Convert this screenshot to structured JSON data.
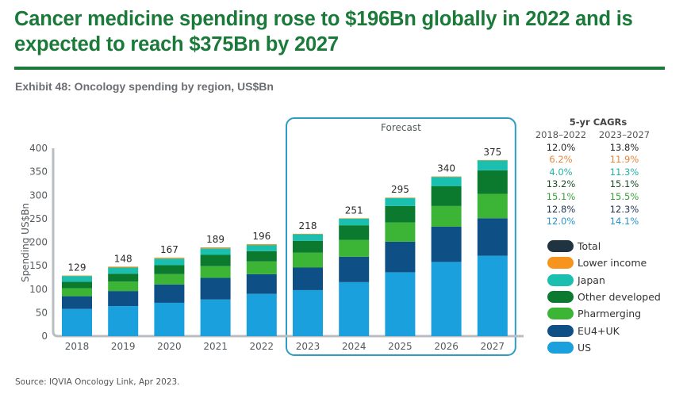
{
  "headline": "Cancer medicine spending rose to $196Bn globally in 2022 and is expected to reach $375Bn by 2027",
  "exhibit_title": "Exhibit 48: Oncology spending by region, US$Bn",
  "source": "Source: IQVIA Oncology Link, Apr 2023.",
  "colors": {
    "headline": "#1B7A3A",
    "US": "#1AA0DC",
    "EU4+UK": "#0E4F86",
    "Pharmerging": "#3CB536",
    "Other developed": "#0B7A2E",
    "Japan": "#1ABFB0",
    "Lower income": "#F7941D",
    "Total": "#1F3340",
    "forecast_box": "#2E9BC4"
  },
  "cagr_table": {
    "title": "5-yr CAGRs",
    "columns": [
      "2018–2022",
      "2023–2027"
    ],
    "rows": [
      {
        "series": "Total",
        "values": [
          "12.0%",
          "13.8%"
        ],
        "color": "#222222"
      },
      {
        "series": "Lower income",
        "values": [
          "6.2%",
          "11.9%"
        ],
        "color": "#E8843A"
      },
      {
        "series": "Japan",
        "values": [
          "4.0%",
          "11.3%"
        ],
        "color": "#22B3A8"
      },
      {
        "series": "Other developed",
        "values": [
          "13.2%",
          "15.1%"
        ],
        "color": "#1E4D2B"
      },
      {
        "series": "Pharmerging",
        "values": [
          "15.1%",
          "15.5%"
        ],
        "color": "#3A9E3A"
      },
      {
        "series": "EU4+UK",
        "values": [
          "12.8%",
          "12.3%"
        ],
        "color": "#1E3350"
      },
      {
        "series": "US",
        "values": [
          "12.0%",
          "14.1%"
        ],
        "color": "#2A95C8"
      }
    ]
  },
  "legend": [
    {
      "label": "Total",
      "color": "#1F3340"
    },
    {
      "label": "Lower income",
      "color": "#F7941D"
    },
    {
      "label": "Japan",
      "color": "#1ABFB0"
    },
    {
      "label": "Other developed",
      "color": "#0B7A2E"
    },
    {
      "label": "Pharmerging",
      "color": "#3CB536"
    },
    {
      "label": "EU4+UK",
      "color": "#0E4F86"
    },
    {
      "label": "US",
      "color": "#1AA0DC"
    }
  ],
  "chart_data": {
    "type": "bar",
    "stacked": true,
    "title": "Exhibit 48: Oncology spending by region, US$Bn",
    "xlabel": "",
    "ylabel": "Spending US$Bn",
    "ylim": [
      0,
      400
    ],
    "yticks": [
      0,
      50,
      100,
      150,
      200,
      250,
      300,
      350,
      400
    ],
    "grid": false,
    "legend_position": "right",
    "categories": [
      "2018",
      "2019",
      "2020",
      "2021",
      "2022",
      "2023",
      "2024",
      "2025",
      "2026",
      "2027"
    ],
    "forecast_categories": [
      "2023",
      "2024",
      "2025",
      "2026",
      "2027"
    ],
    "forecast_label": "Forecast",
    "totals": [
      129,
      148,
      167,
      189,
      196,
      218,
      251,
      295,
      340,
      375
    ],
    "series": [
      {
        "name": "US",
        "values": [
          58,
          64,
          71,
          78,
          90,
          98,
          115,
          136,
          158,
          171
        ]
      },
      {
        "name": "EU4+UK",
        "values": [
          27,
          32,
          39,
          46,
          42,
          48,
          54,
          65,
          75,
          80
        ]
      },
      {
        "name": "Pharmerging",
        "values": [
          17,
          20,
          22,
          25,
          27,
          32,
          36,
          41,
          44,
          52
        ]
      },
      {
        "name": "Other developed",
        "values": [
          14,
          17,
          19,
          24,
          22,
          25,
          31,
          35,
          42,
          50
        ]
      },
      {
        "name": "Japan",
        "values": [
          12,
          13,
          14,
          14,
          13,
          14,
          14,
          17,
          20,
          21
        ]
      },
      {
        "name": "Lower income",
        "values": [
          1,
          2,
          2,
          2,
          2,
          1,
          1,
          1,
          1,
          1
        ]
      }
    ]
  }
}
